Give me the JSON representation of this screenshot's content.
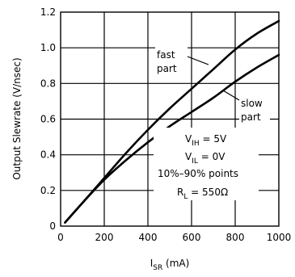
{
  "chart_data": {
    "type": "line",
    "xlabel": {
      "main": "I",
      "sub": "SR",
      "suffix": " (mA)"
    },
    "ylabel": "Output Slewrate (V/nsec)",
    "xlim": [
      0,
      1000
    ],
    "ylim": [
      0,
      1.2
    ],
    "x_ticks": [
      0,
      200,
      400,
      600,
      800,
      1000
    ],
    "y_ticks": [
      0,
      0.2,
      0.4,
      0.6,
      0.8,
      1.0,
      1.2
    ],
    "x_tick_labels": [
      "0",
      "200",
      "400",
      "600",
      "800",
      "1000"
    ],
    "y_tick_labels": [
      "0",
      "0.2",
      "0.4",
      "0.6",
      "0.8",
      "1.0",
      "1.2"
    ],
    "grid": true,
    "series": [
      {
        "label_lines": [
          "fast",
          "part"
        ],
        "x": [
          20,
          100,
          200,
          300,
          400,
          500,
          600,
          700,
          800,
          900,
          1000
        ],
        "y": [
          0.02,
          0.13,
          0.27,
          0.41,
          0.54,
          0.66,
          0.77,
          0.88,
          0.99,
          1.08,
          1.15
        ]
      },
      {
        "label_lines": [
          "slow",
          "part"
        ],
        "x": [
          20,
          100,
          200,
          300,
          400,
          500,
          600,
          700,
          800,
          900,
          1000
        ],
        "y": [
          0.02,
          0.13,
          0.26,
          0.37,
          0.47,
          0.56,
          0.64,
          0.72,
          0.81,
          0.89,
          0.96
        ]
      }
    ],
    "conditions": [
      {
        "main": "V",
        "sub": "IH",
        "text": " = 5V"
      },
      {
        "main": "V",
        "sub": "IL",
        "text": " = 0V"
      },
      {
        "main": "10%–90% points",
        "sub": "",
        "text": ""
      },
      {
        "main": "R",
        "sub": "L",
        "text": " = 550Ω"
      }
    ]
  }
}
